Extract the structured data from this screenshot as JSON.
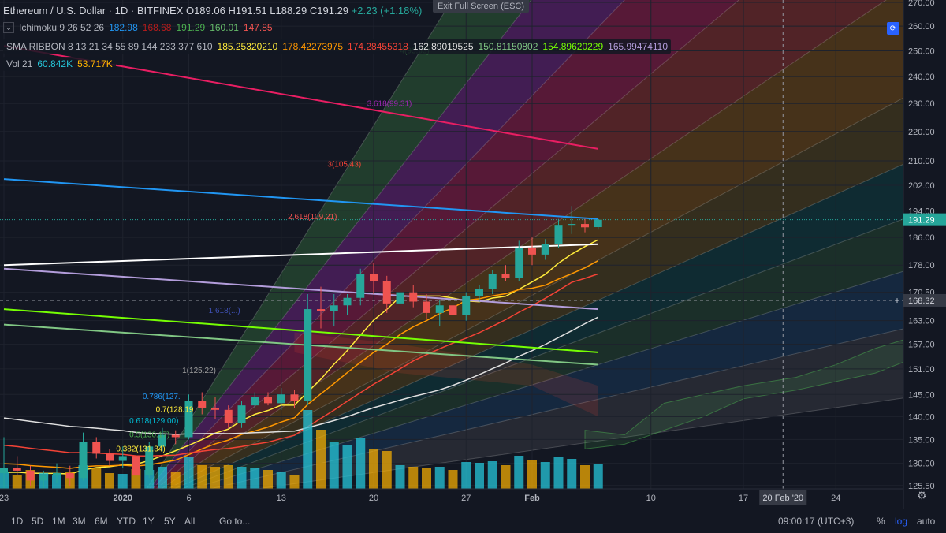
{
  "header": {
    "symbol": "Ethereum / U.S. Dollar",
    "interval": "1D",
    "exchange": "BITFINEX",
    "open": "O189.06",
    "high": "H191.51",
    "low": "L188.29",
    "close": "C191.29",
    "change": "+2.23 (+1.18%)"
  },
  "ichimoku": {
    "label": "Ichimoku 9 26 52 26",
    "values": [
      {
        "text": "182.98",
        "color": "#2196f3"
      },
      {
        "text": "168.68",
        "color": "#b71c1c"
      },
      {
        "text": "191.29",
        "color": "#4caf50"
      },
      {
        "text": "160.01",
        "color": "#66bb6a"
      },
      {
        "text": "147.85",
        "color": "#ef5350"
      }
    ]
  },
  "sma_ribbon": {
    "label": "SMA RIBBON 8 13 21 34 55 89 144 233 377 610",
    "values": [
      {
        "text": "185.25320210",
        "color": "#ffeb3b"
      },
      {
        "text": "178.42273975",
        "color": "#ff9800"
      },
      {
        "text": "174.28455318",
        "color": "#f44336"
      },
      {
        "text": "162.89019525",
        "color": "#e0e0e0"
      },
      {
        "text": "150.81150802",
        "color": "#81c784"
      },
      {
        "text": "154.89620229",
        "color": "#76ff03"
      },
      {
        "text": "165.99474110",
        "color": "#b39ddb"
      }
    ]
  },
  "volume": {
    "label": "Vol 21",
    "values": [
      {
        "text": "60.842K",
        "color": "#26c6da"
      },
      {
        "text": "53.717K",
        "color": "#ffb300"
      }
    ]
  },
  "toolbar": {
    "exit_fullscreen": "Exit Full Screen (ESC)",
    "time": "09:00:17 (UTC+3)",
    "percent": "%",
    "log": "log",
    "auto": "auto",
    "goto": "Go to...",
    "ranges": [
      "1D",
      "5D",
      "1M",
      "3M",
      "6M",
      "YTD",
      "1Y",
      "5Y",
      "All"
    ]
  },
  "colors": {
    "background": "#131722",
    "up": "#26a69a",
    "down": "#ef5350",
    "accent": "#2962ff"
  },
  "chart_data": {
    "type": "candlestick",
    "y_scale": "log",
    "ylim": [
      121,
      271
    ],
    "y_ticks": [
      125.5,
      130.0,
      135.0,
      140.0,
      145.0,
      151.0,
      157.0,
      163.0,
      170.5,
      178.0,
      186.0,
      194.0,
      202.0,
      210.0,
      220.0,
      230.0,
      240.0,
      250.0,
      260.0,
      270.0
    ],
    "price_label": "191.29",
    "crosshair_label": "168.32",
    "crosshair_price": 168.32,
    "crosshair_date_label": "20 Feb '20",
    "x_labels": [
      {
        "text": "23",
        "day": 0
      },
      {
        "text": "2020",
        "day": 9
      },
      {
        "text": "6",
        "day": 14
      },
      {
        "text": "13",
        "day": 21
      },
      {
        "text": "20",
        "day": 28
      },
      {
        "text": "27",
        "day": 35
      },
      {
        "text": "Feb",
        "day": 40
      },
      {
        "text": "10",
        "day": 49
      },
      {
        "text": "17",
        "day": 56
      },
      {
        "text": "24",
        "day": 63
      }
    ],
    "crosshair_day": 59,
    "candles": [
      {
        "o": 128.0,
        "h": 135.5,
        "l": 124.0,
        "c": 129.0,
        "v": 22
      },
      {
        "o": 129.0,
        "h": 131.5,
        "l": 127.5,
        "c": 128.5,
        "v": 18
      },
      {
        "o": 128.5,
        "h": 129.5,
        "l": 125.5,
        "c": 126.5,
        "v": 24
      },
      {
        "o": 126.5,
        "h": 128.5,
        "l": 124.5,
        "c": 127.5,
        "v": 20
      },
      {
        "o": 127.5,
        "h": 130.0,
        "l": 126.0,
        "c": 128.0,
        "v": 18
      },
      {
        "o": 128.0,
        "h": 129.5,
        "l": 125.5,
        "c": 127.0,
        "v": 22
      },
      {
        "o": 127.0,
        "h": 136.5,
        "l": 126.5,
        "c": 134.5,
        "v": 30
      },
      {
        "o": 134.5,
        "h": 135.5,
        "l": 131.0,
        "c": 132.0,
        "v": 26
      },
      {
        "o": 132.0,
        "h": 133.0,
        "l": 129.5,
        "c": 130.5,
        "v": 20
      },
      {
        "o": 130.5,
        "h": 133.5,
        "l": 129.0,
        "c": 131.5,
        "v": 19
      },
      {
        "o": 131.5,
        "h": 132.5,
        "l": 126.5,
        "c": 127.5,
        "v": 25
      },
      {
        "o": 127.5,
        "h": 134.5,
        "l": 127.0,
        "c": 133.5,
        "v": 24
      },
      {
        "o": 133.5,
        "h": 137.5,
        "l": 132.5,
        "c": 136.0,
        "v": 28
      },
      {
        "o": 136.0,
        "h": 137.0,
        "l": 134.0,
        "c": 135.5,
        "v": 22
      },
      {
        "o": 135.5,
        "h": 145.0,
        "l": 135.0,
        "c": 143.5,
        "v": 40
      },
      {
        "o": 143.5,
        "h": 145.5,
        "l": 140.5,
        "c": 142.0,
        "v": 30
      },
      {
        "o": 142.0,
        "h": 144.5,
        "l": 139.5,
        "c": 141.5,
        "v": 28
      },
      {
        "o": 141.5,
        "h": 142.5,
        "l": 137.5,
        "c": 138.5,
        "v": 30
      },
      {
        "o": 138.5,
        "h": 143.5,
        "l": 137.5,
        "c": 142.5,
        "v": 28
      },
      {
        "o": 142.5,
        "h": 145.5,
        "l": 142.0,
        "c": 144.5,
        "v": 26
      },
      {
        "o": 144.5,
        "h": 145.5,
        "l": 142.5,
        "c": 143.0,
        "v": 24
      },
      {
        "o": 143.0,
        "h": 146.5,
        "l": 141.5,
        "c": 145.0,
        "v": 22
      },
      {
        "o": 145.0,
        "h": 146.0,
        "l": 142.0,
        "c": 143.5,
        "v": 18
      },
      {
        "o": 143.5,
        "h": 170.0,
        "l": 142.5,
        "c": 166.0,
        "v": 100
      },
      {
        "o": 166.0,
        "h": 172.0,
        "l": 161.0,
        "c": 165.5,
        "v": 75
      },
      {
        "o": 165.5,
        "h": 170.0,
        "l": 161.5,
        "c": 167.0,
        "v": 60
      },
      {
        "o": 167.0,
        "h": 170.0,
        "l": 164.5,
        "c": 169.0,
        "v": 55
      },
      {
        "o": 169.0,
        "h": 177.0,
        "l": 167.0,
        "c": 175.5,
        "v": 65
      },
      {
        "o": 175.5,
        "h": 178.5,
        "l": 170.0,
        "c": 173.5,
        "v": 50
      },
      {
        "o": 173.5,
        "h": 175.0,
        "l": 165.0,
        "c": 167.5,
        "v": 48
      },
      {
        "o": 167.5,
        "h": 172.0,
        "l": 165.5,
        "c": 170.5,
        "v": 30
      },
      {
        "o": 170.5,
        "h": 172.5,
        "l": 166.5,
        "c": 168.0,
        "v": 28
      },
      {
        "o": 168.0,
        "h": 170.0,
        "l": 163.5,
        "c": 165.0,
        "v": 26
      },
      {
        "o": 165.0,
        "h": 168.5,
        "l": 161.5,
        "c": 167.0,
        "v": 28
      },
      {
        "o": 167.0,
        "h": 169.0,
        "l": 164.0,
        "c": 164.5,
        "v": 24
      },
      {
        "o": 164.5,
        "h": 170.5,
        "l": 163.0,
        "c": 169.5,
        "v": 34
      },
      {
        "o": 169.5,
        "h": 172.5,
        "l": 168.0,
        "c": 171.5,
        "v": 33
      },
      {
        "o": 171.5,
        "h": 176.5,
        "l": 170.0,
        "c": 175.5,
        "v": 35
      },
      {
        "o": 175.5,
        "h": 178.0,
        "l": 173.5,
        "c": 174.5,
        "v": 30
      },
      {
        "o": 174.5,
        "h": 185.0,
        "l": 173.5,
        "c": 183.0,
        "v": 42
      },
      {
        "o": 183.0,
        "h": 186.0,
        "l": 178.0,
        "c": 181.0,
        "v": 36
      },
      {
        "o": 181.0,
        "h": 185.5,
        "l": 179.5,
        "c": 184.0,
        "v": 34
      },
      {
        "o": 184.0,
        "h": 191.5,
        "l": 183.0,
        "c": 189.5,
        "v": 40
      },
      {
        "o": 189.5,
        "h": 195.5,
        "l": 187.0,
        "c": 190.0,
        "v": 38
      },
      {
        "o": 190.0,
        "h": 191.5,
        "l": 187.5,
        "c": 189.0,
        "v": 30
      },
      {
        "o": 189.06,
        "h": 191.51,
        "l": 188.29,
        "c": 191.29,
        "v": 32
      }
    ],
    "fib_labels": [
      {
        "text": "4(95.53)",
        "color": "#4caf50",
        "day": 30,
        "price": 249
      },
      {
        "text": "3.618(99.31)",
        "color": "#9c27b0",
        "day": 27.5,
        "price": 229
      },
      {
        "text": "3(105.43)",
        "color": "#f44336",
        "day": 24.5,
        "price": 208
      },
      {
        "text": "2.618(109.21)",
        "color": "#ef5350",
        "day": 21.5,
        "price": 191.5
      },
      {
        "text": "1.618(...)",
        "color": "#3f51b5",
        "day": 15.5,
        "price": 165
      },
      {
        "text": "1(125.22)",
        "color": "#9e9e9e",
        "day": 13.5,
        "price": 150
      },
      {
        "text": "0.786(127.",
        "color": "#2196f3",
        "day": 10.5,
        "price": 144
      },
      {
        "text": "0.7(128.19",
        "color": "#ffeb3b",
        "day": 11.5,
        "price": 141
      },
      {
        "text": "0.618(129.00)",
        "color": "#00bcd4",
        "day": 9.5,
        "price": 138.5
      },
      {
        "text": "0.5(130.17)",
        "color": "#4caf50",
        "day": 9.5,
        "price": 135.5
      },
      {
        "text": "0.382(131.34)",
        "color": "#ffeb3b",
        "day": 8.5,
        "price": 132.5
      }
    ]
  }
}
